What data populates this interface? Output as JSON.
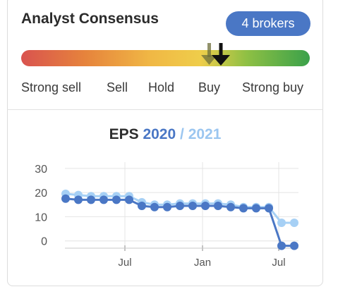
{
  "header": {
    "title": "Analyst Consensus",
    "brokers_label": "4 brokers"
  },
  "consensus": {
    "scale": [
      "Strong sell",
      "Sell",
      "Hold",
      "Buy",
      "Strong buy"
    ]
  },
  "colors": {
    "badge": "#4a77c5",
    "series_2020": "#4a77c5",
    "series_2021": "#a6d0f5",
    "gauge": [
      "#d9534f",
      "#e6833c",
      "#f0b845",
      "#efcd4a",
      "#8fc044",
      "#3aa14a"
    ]
  },
  "chart_title": {
    "prefix": "EPS",
    "year_a": "2020",
    "separator": "/",
    "year_b": "2021"
  },
  "chart_data": {
    "type": "line",
    "x_ticks": [
      "Jul",
      "Jan",
      "Jul"
    ],
    "yticks": [
      0,
      10,
      20,
      30
    ],
    "ylim": [
      -3,
      32
    ],
    "grid": true,
    "series": [
      {
        "name": "2020",
        "values": [
          17.5,
          17,
          17,
          17,
          17,
          17,
          14.5,
          14,
          14,
          14.5,
          14.5,
          14.5,
          14.5,
          14,
          13.5,
          13.5,
          13.5,
          -2,
          -2
        ]
      },
      {
        "name": "2021",
        "values": [
          19.5,
          19,
          18.5,
          18.5,
          18.5,
          18.5,
          16,
          15,
          15,
          15.5,
          15.5,
          15.5,
          15.5,
          15,
          14,
          14,
          14,
          7.5,
          7.5
        ]
      }
    ]
  }
}
